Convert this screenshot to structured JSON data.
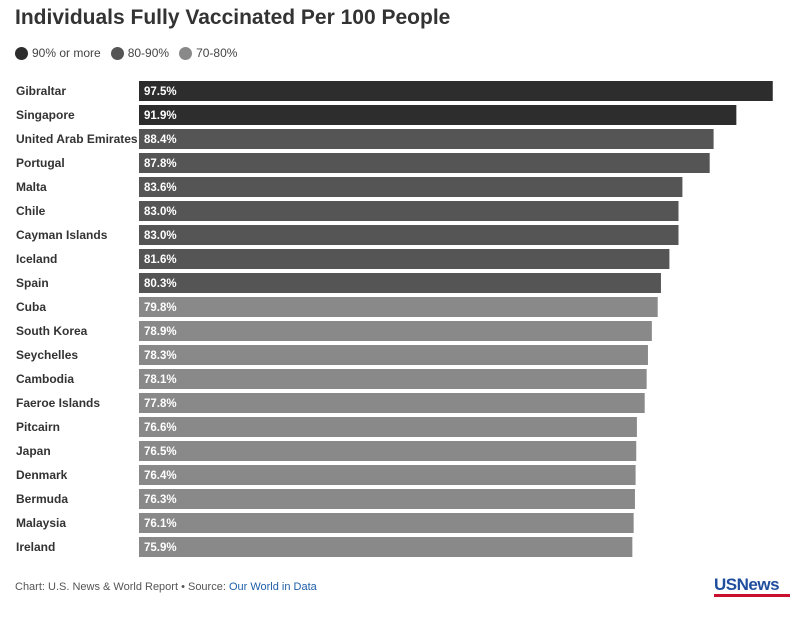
{
  "header": {
    "title": "Individuals Fully Vaccinated Per 100 People"
  },
  "legend": [
    {
      "label": "90% or more",
      "color": "#2d2d2d"
    },
    {
      "label": "80-90%",
      "color": "#555555"
    },
    {
      "label": "70-80%",
      "color": "#898989"
    }
  ],
  "chart_data": {
    "type": "bar",
    "orientation": "horizontal",
    "title": "Individuals Fully Vaccinated Per 100 People",
    "xlim": [
      0,
      100
    ],
    "grid": false,
    "legend_position": "top-left",
    "categories": [
      "Gibraltar",
      "Singapore",
      "United Arab Emirates",
      "Portugal",
      "Malta",
      "Chile",
      "Cayman Islands",
      "Iceland",
      "Spain",
      "Cuba",
      "South Korea",
      "Seychelles",
      "Cambodia",
      "Faeroe Islands",
      "Pitcairn",
      "Japan",
      "Denmark",
      "Bermuda",
      "Malaysia",
      "Ireland"
    ],
    "values": [
      97.5,
      91.9,
      88.4,
      87.8,
      83.6,
      83.0,
      83.0,
      81.6,
      80.3,
      79.8,
      78.9,
      78.3,
      78.1,
      77.8,
      76.6,
      76.5,
      76.4,
      76.3,
      76.1,
      75.9
    ],
    "value_labels": [
      "97.5%",
      "91.9%",
      "88.4%",
      "87.8%",
      "83.6%",
      "83.0%",
      "83.0%",
      "81.6%",
      "80.3%",
      "79.8%",
      "78.9%",
      "78.3%",
      "78.1%",
      "77.8%",
      "76.6%",
      "76.5%",
      "76.4%",
      "76.3%",
      "76.1%",
      "75.9%"
    ],
    "groups": [
      "90% or more",
      "90% or more",
      "80-90%",
      "80-90%",
      "80-90%",
      "80-90%",
      "80-90%",
      "80-90%",
      "80-90%",
      "70-80%",
      "70-80%",
      "70-80%",
      "70-80%",
      "70-80%",
      "70-80%",
      "70-80%",
      "70-80%",
      "70-80%",
      "70-80%",
      "70-80%"
    ]
  },
  "footer": {
    "credit": "Chart: U.S. News & World Report • Source: ",
    "source_link": "Our World in Data"
  },
  "logo": {
    "text": "USNews"
  }
}
